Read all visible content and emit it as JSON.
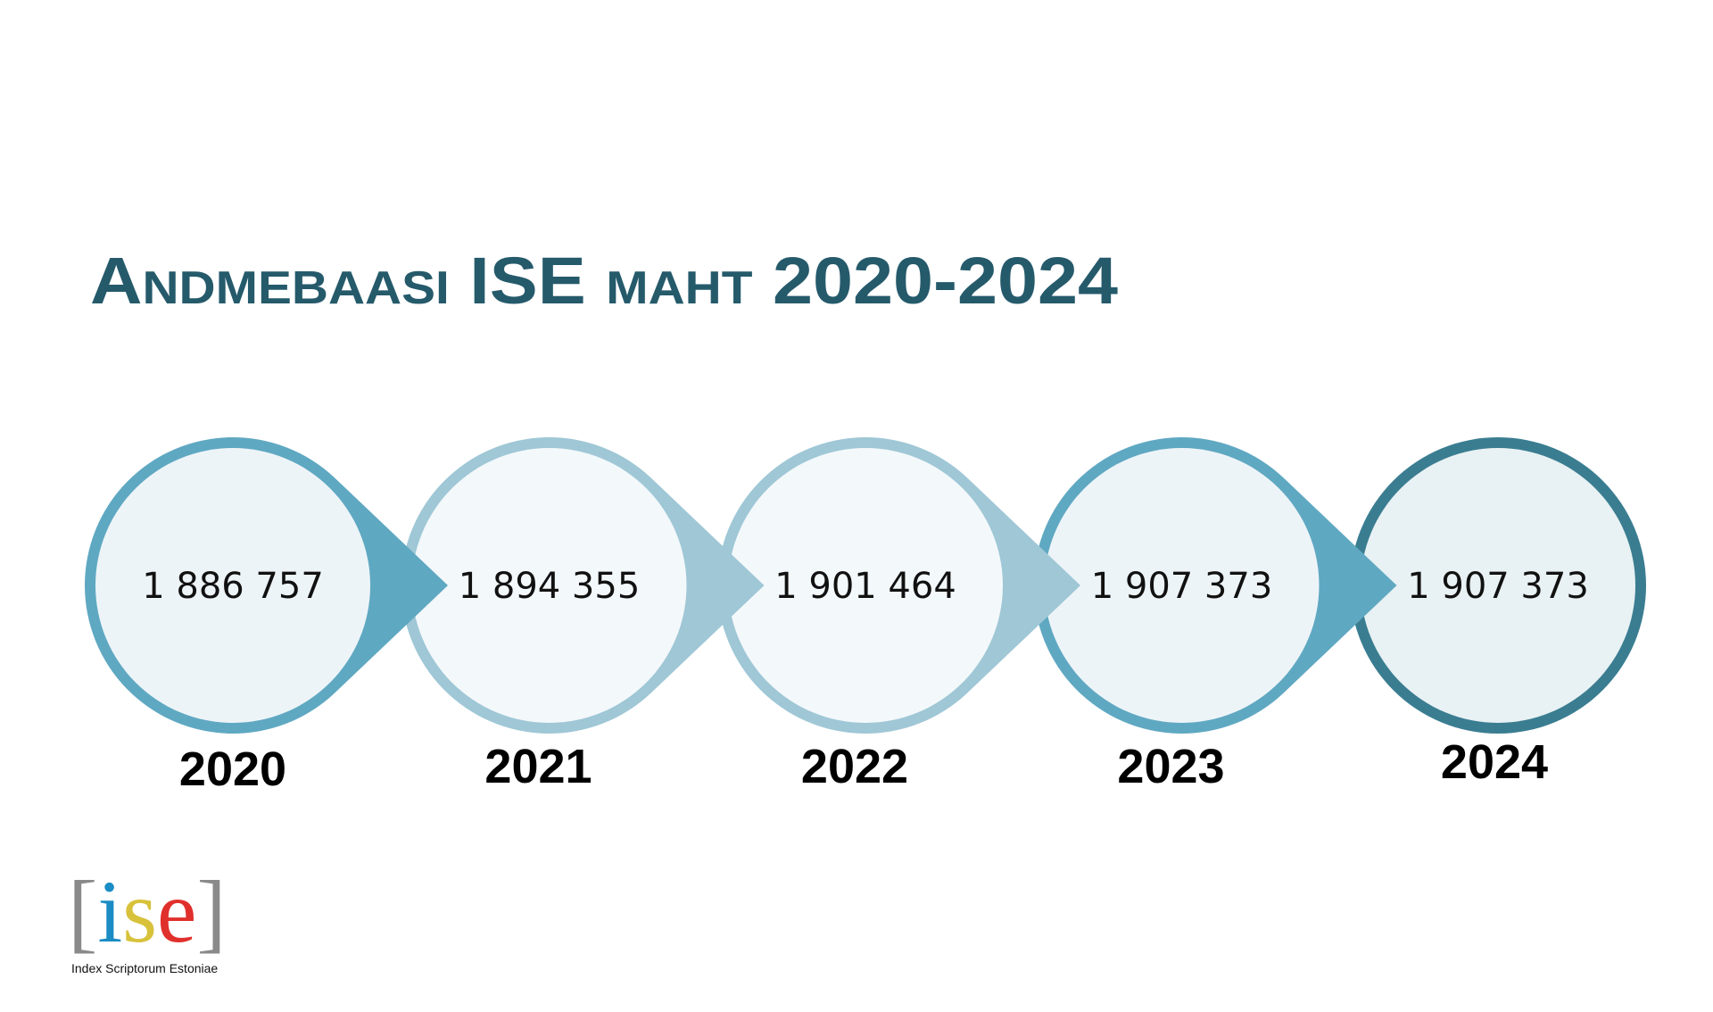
{
  "header": {
    "title": "Andmebaasi ISE maht 2020-2024"
  },
  "timeline": [
    {
      "value": "1 886 757",
      "year": "2020"
    },
    {
      "value": "1 894 355",
      "year": "2021"
    },
    {
      "value": "1 901 464",
      "year": "2022"
    },
    {
      "value": "1 907 373",
      "year": "2023"
    },
    {
      "value": "1 907 373",
      "year": "2024"
    }
  ],
  "logo": {
    "letters": [
      "[",
      "i",
      "s",
      "e",
      "]"
    ],
    "caption": "Index Scriptorum Estoniae"
  }
}
